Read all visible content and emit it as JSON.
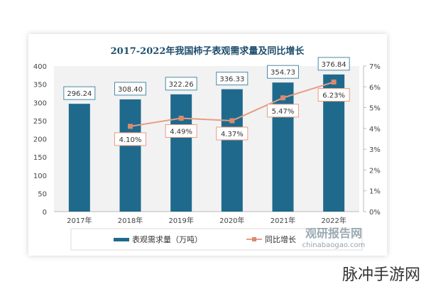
{
  "chart_data": {
    "type": "bar+line",
    "title": "2017-2022年我国柿子表观需求量及同比增长",
    "categories": [
      "2017年",
      "2018年",
      "2019年",
      "2020年",
      "2021年",
      "2022年"
    ],
    "series": [
      {
        "name": "表观需求量（万吨）",
        "type": "bar",
        "axis": "left",
        "color": "#1f6a8c",
        "values": [
          296.24,
          308.4,
          322.26,
          336.33,
          354.73,
          376.84
        ],
        "labels": [
          "296.24",
          "308.40",
          "322.26",
          "336.33",
          "354.73",
          "376.84"
        ]
      },
      {
        "name": "同比增长",
        "type": "line",
        "axis": "right",
        "color": "#e89c84",
        "values": [
          null,
          4.1,
          4.49,
          4.37,
          5.47,
          6.23
        ],
        "labels": [
          "",
          "4.10%",
          "4.49%",
          "4.37%",
          "5.47%",
          "6.23%"
        ]
      }
    ],
    "y_left": {
      "range": [
        0,
        400
      ],
      "ticks": [
        "0",
        "50",
        "100",
        "150",
        "200",
        "250",
        "300",
        "350",
        "400"
      ]
    },
    "y_right": {
      "range": [
        0,
        7
      ],
      "ticks": [
        "0%",
        "1%",
        "2%",
        "3%",
        "4%",
        "5%",
        "6%",
        "7%"
      ]
    },
    "grid": false,
    "legend_position": "bottom"
  },
  "watermark": {
    "brand": "观研报告网",
    "url": "chinabaogao.com"
  },
  "corner_text": "脉冲手游网"
}
